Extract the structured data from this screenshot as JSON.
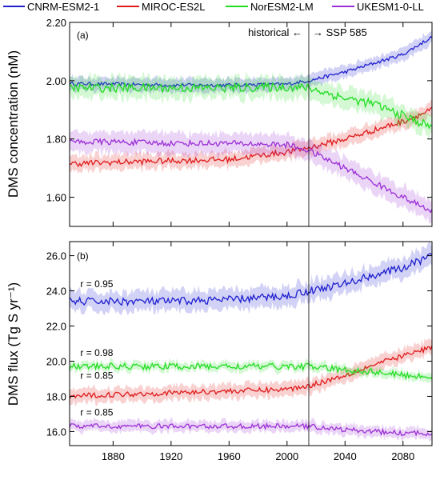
{
  "legend": [
    {
      "name": "CNRM-ESM2-1",
      "color": "#1f1fd0"
    },
    {
      "name": "MIROC-ES2L",
      "color": "#e01b1b"
    },
    {
      "name": "NorESM2-LM",
      "color": "#22dd22"
    },
    {
      "name": "UKESM1-0-LL",
      "color": "#9b2fd6"
    }
  ],
  "scenario_divider": {
    "year": 2015,
    "left_label": "historical ←",
    "right_label": "→ SSP 585"
  },
  "x_ticks": [
    "1880",
    "1920",
    "1960",
    "2000",
    "2040",
    "2080"
  ],
  "chart_data": [
    {
      "type": "line",
      "panel_label": "(a)",
      "ylabel": "DMS concentration (nM)",
      "xlim": [
        1850,
        2100
      ],
      "ylim": [
        1.5,
        2.2
      ],
      "yticks": [
        "1.60",
        "1.80",
        "2.00",
        "2.20"
      ],
      "grid": false,
      "x_keyframes": [
        1850,
        1880,
        1920,
        1960,
        2000,
        2015,
        2040,
        2060,
        2080,
        2100
      ],
      "series": [
        {
          "name": "CNRM-ESM2-1",
          "color": "#1f1fd0",
          "band": 0.022,
          "noise": 0.006,
          "values": [
            1.99,
            1.988,
            1.985,
            1.985,
            1.988,
            2.0,
            2.03,
            2.06,
            2.09,
            2.15
          ]
        },
        {
          "name": "MIROC-ES2L",
          "color": "#e01b1b",
          "band": 0.025,
          "noise": 0.01,
          "values": [
            1.715,
            1.72,
            1.725,
            1.73,
            1.755,
            1.77,
            1.8,
            1.83,
            1.86,
            1.9
          ]
        },
        {
          "name": "NorESM2-LM",
          "color": "#22dd22",
          "band": 0.035,
          "noise": 0.015,
          "values": [
            1.975,
            1.975,
            1.975,
            1.975,
            1.978,
            1.975,
            1.94,
            1.92,
            1.88,
            1.84
          ]
        },
        {
          "name": "UKESM1-0-LL",
          "color": "#9b2fd6",
          "band": 0.035,
          "noise": 0.01,
          "values": [
            1.79,
            1.79,
            1.785,
            1.785,
            1.78,
            1.76,
            1.7,
            1.65,
            1.6,
            1.55
          ]
        }
      ]
    },
    {
      "type": "line",
      "panel_label": "(b)",
      "ylabel": "DMS flux (Tg S yr⁻¹)",
      "xlim": [
        1850,
        2100
      ],
      "ylim": [
        15.2,
        26.8
      ],
      "yticks": [
        "16.0",
        "18.0",
        "20.0",
        "22.0",
        "24.0",
        "26.0"
      ],
      "grid": false,
      "x_keyframes": [
        1850,
        1880,
        1920,
        1960,
        2000,
        2015,
        2040,
        2060,
        2080,
        2100
      ],
      "annotations": [
        {
          "text": "r = 0.95",
          "x": 1853,
          "y": 24.2
        },
        {
          "text": "r = 0.98",
          "x": 1853,
          "y": 20.3
        },
        {
          "text": "r = 0.85",
          "x": 1853,
          "y": 19.0
        },
        {
          "text": "r = 0.85",
          "x": 1853,
          "y": 16.9
        }
      ],
      "series": [
        {
          "name": "CNRM-ESM2-1",
          "color": "#1f1fd0",
          "band": 0.55,
          "noise": 0.22,
          "values": [
            23.4,
            23.4,
            23.4,
            23.5,
            23.7,
            24.0,
            24.4,
            24.9,
            25.3,
            26.0
          ]
        },
        {
          "name": "MIROC-ES2L",
          "color": "#e01b1b",
          "band": 0.4,
          "noise": 0.15,
          "values": [
            18.0,
            18.1,
            18.2,
            18.3,
            18.4,
            18.6,
            19.2,
            19.8,
            20.3,
            20.8
          ]
        },
        {
          "name": "NorESM2-LM",
          "color": "#22dd22",
          "band": 0.25,
          "noise": 0.18,
          "values": [
            19.7,
            19.7,
            19.7,
            19.7,
            19.7,
            19.7,
            19.5,
            19.4,
            19.2,
            19.1
          ]
        },
        {
          "name": "UKESM1-0-LL",
          "color": "#9b2fd6",
          "band": 0.3,
          "noise": 0.14,
          "values": [
            16.3,
            16.3,
            16.3,
            16.3,
            16.3,
            16.3,
            16.1,
            16.0,
            15.9,
            15.9
          ]
        }
      ]
    }
  ]
}
